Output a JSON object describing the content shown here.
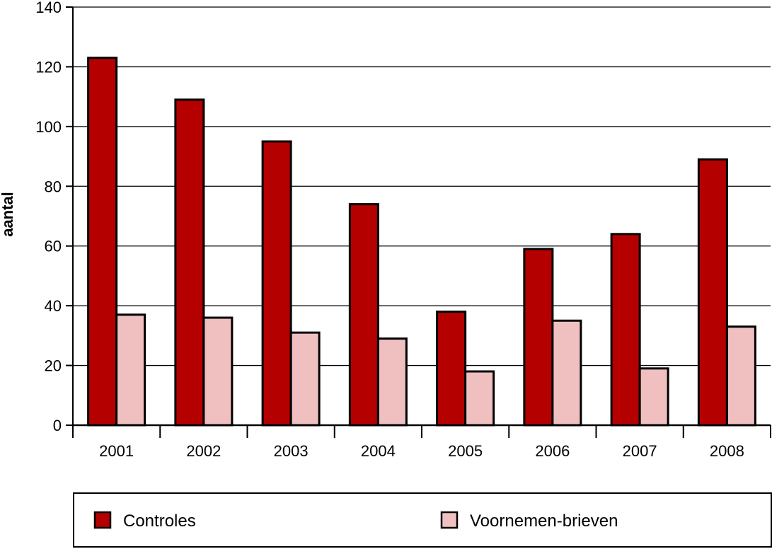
{
  "chart_data": {
    "type": "bar",
    "categories": [
      "2001",
      "2002",
      "2003",
      "2004",
      "2005",
      "2006",
      "2007",
      "2008"
    ],
    "series": [
      {
        "name": "Controles",
        "color": "#b50000",
        "values": [
          123,
          109,
          95,
          74,
          38,
          59,
          64,
          89
        ]
      },
      {
        "name": "Voornemen-brieven",
        "color": "#f0c0c0",
        "values": [
          37,
          36,
          31,
          29,
          18,
          35,
          19,
          33
        ]
      }
    ],
    "title": "",
    "xlabel": "",
    "ylabel": "aantal",
    "ylim": [
      0,
      140
    ],
    "yticks": [
      0,
      20,
      40,
      60,
      80,
      100,
      120,
      140
    ],
    "grid": true,
    "legend_position": "bottom"
  }
}
